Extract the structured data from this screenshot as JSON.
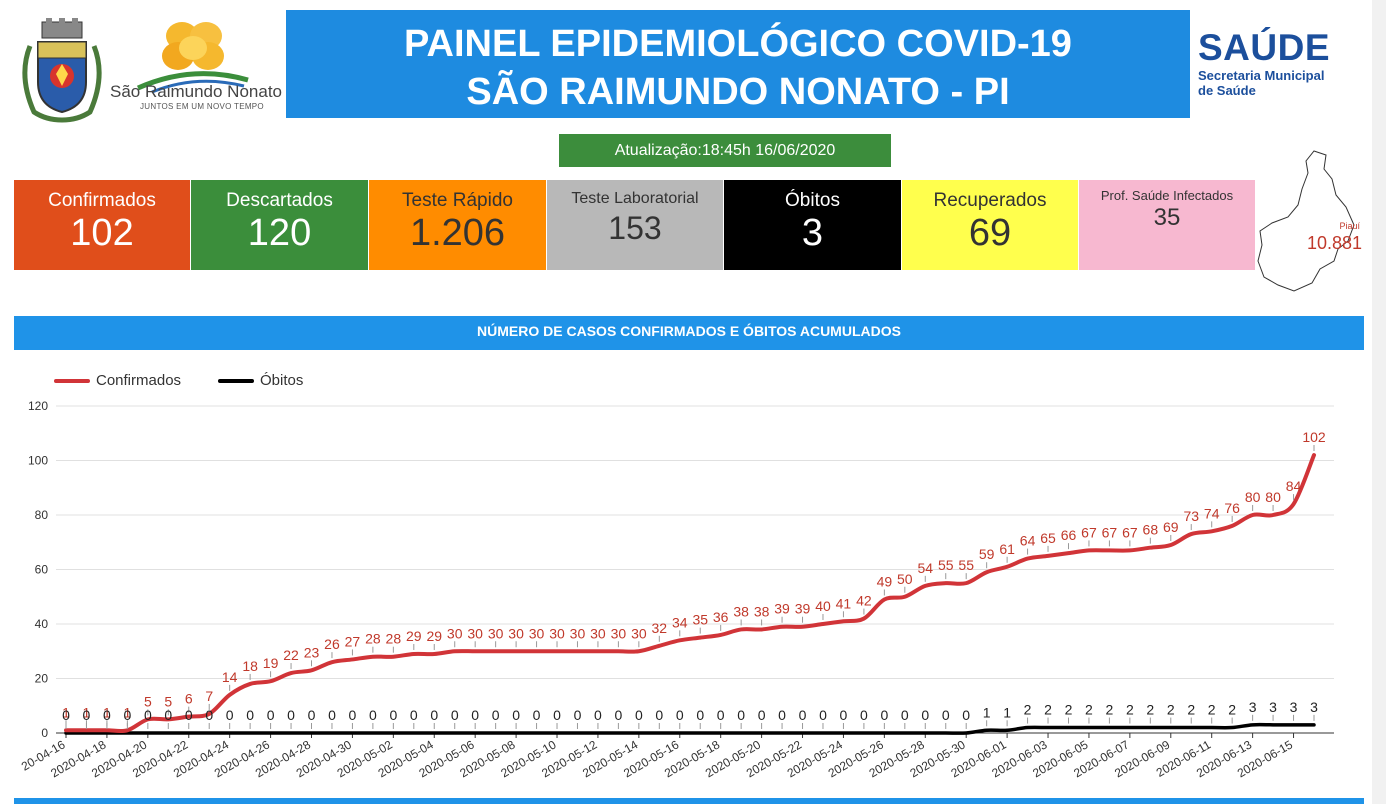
{
  "header": {
    "city_name": "São Raimundo Nonato",
    "city_slogan": "JUNTOS EM UM NOVO TEMPO",
    "title_line1": "PAINEL EPIDEMIOLÓGICO COVID-19",
    "title_line2": "SÃO RAIMUNDO NONATO - PI",
    "saude_big": "SAÚDE",
    "saude_line1": "Secretaria Municipal",
    "saude_line2": "de Saúde",
    "update": "Atualização:18:45h 16/06/2020"
  },
  "cards": [
    {
      "label": "Confirmados",
      "value": "102",
      "bg": "#e04e1b",
      "fg": "#ffffff"
    },
    {
      "label": "Descartados",
      "value": "120",
      "bg": "#3b8e3b",
      "fg": "#ffffff"
    },
    {
      "label": "Teste Rápido",
      "value": "1.206",
      "bg": "#ff8c00",
      "fg": "#333333"
    },
    {
      "label": "Teste Laboratorial",
      "value": "153",
      "bg": "#b8b8b8",
      "fg": "#333333"
    },
    {
      "label": "Óbitos",
      "value": "3",
      "bg": "#000000",
      "fg": "#ffffff"
    },
    {
      "label": "Recuperados",
      "value": "69",
      "bg": "#ffff4d",
      "fg": "#333333"
    },
    {
      "label": "Prof. Saúde Infectados",
      "value": "35",
      "bg": "#f7b8d0",
      "fg": "#333333"
    }
  ],
  "map": {
    "label": "Piauí",
    "value": "10.881"
  },
  "chart_title": "NÚMERO DE CASOS CONFIRMADOS E ÓBITOS ACUMULADOS",
  "chart_data": {
    "type": "line",
    "x": [
      "2020-04-16",
      "2020-04-17",
      "2020-04-18",
      "2020-04-19",
      "2020-04-20",
      "2020-04-21",
      "2020-04-22",
      "2020-04-23",
      "2020-04-24",
      "2020-04-25",
      "2020-04-26",
      "2020-04-27",
      "2020-04-28",
      "2020-04-29",
      "2020-04-30",
      "2020-05-01",
      "2020-05-02",
      "2020-05-03",
      "2020-05-04",
      "2020-05-05",
      "2020-05-06",
      "2020-05-07",
      "2020-05-08",
      "2020-05-09",
      "2020-05-10",
      "2020-05-11",
      "2020-05-12",
      "2020-05-13",
      "2020-05-14",
      "2020-05-15",
      "2020-05-16",
      "2020-05-17",
      "2020-05-18",
      "2020-05-19",
      "2020-05-20",
      "2020-05-21",
      "2020-05-22",
      "2020-05-23",
      "2020-05-24",
      "2020-05-25",
      "2020-05-26",
      "2020-05-27",
      "2020-05-28",
      "2020-05-29",
      "2020-05-30",
      "2020-05-31",
      "2020-06-01",
      "2020-06-02",
      "2020-06-03",
      "2020-06-04",
      "2020-06-05",
      "2020-06-06",
      "2020-06-07",
      "2020-06-08",
      "2020-06-09",
      "2020-06-10",
      "2020-06-11",
      "2020-06-12",
      "2020-06-13",
      "2020-06-14",
      "2020-06-15",
      "2020-06-16"
    ],
    "x_tick_labels": [
      "20-04-16",
      "2020-04-18",
      "2020-04-20",
      "2020-04-22",
      "2020-04-24",
      "2020-04-26",
      "2020-04-28",
      "2020-04-30",
      "2020-05-02",
      "2020-05-04",
      "2020-05-06",
      "2020-05-08",
      "2020-05-10",
      "2020-05-12",
      "2020-05-14",
      "2020-05-16",
      "2020-05-18",
      "2020-05-20",
      "2020-05-22",
      "2020-05-24",
      "2020-05-26",
      "2020-05-28",
      "2020-05-30",
      "2020-06-01",
      "2020-06-03",
      "2020-06-05",
      "2020-06-07",
      "2020-06-09",
      "2020-06-11",
      "2020-06-13",
      "2020-06-15"
    ],
    "series": [
      {
        "name": "Confirmados",
        "color": "#d13438",
        "values": [
          1,
          1,
          1,
          1,
          5,
          5,
          6,
          7,
          14,
          18,
          19,
          22,
          23,
          26,
          27,
          28,
          28,
          29,
          29,
          30,
          30,
          30,
          30,
          30,
          30,
          30,
          30,
          30,
          30,
          32,
          34,
          35,
          36,
          38,
          38,
          39,
          39,
          40,
          41,
          42,
          49,
          50,
          54,
          55,
          55,
          59,
          61,
          64,
          65,
          66,
          67,
          67,
          67,
          68,
          69,
          73,
          74,
          76,
          80,
          80,
          84,
          102
        ]
      },
      {
        "name": "Óbitos",
        "color": "#000000",
        "values": [
          0,
          0,
          0,
          0,
          0,
          0,
          0,
          0,
          0,
          0,
          0,
          0,
          0,
          0,
          0,
          0,
          0,
          0,
          0,
          0,
          0,
          0,
          0,
          0,
          0,
          0,
          0,
          0,
          0,
          0,
          0,
          0,
          0,
          0,
          0,
          0,
          0,
          0,
          0,
          0,
          0,
          0,
          0,
          0,
          0,
          1,
          1,
          2,
          2,
          2,
          2,
          2,
          2,
          2,
          2,
          2,
          2,
          2,
          3,
          3,
          3,
          3
        ]
      }
    ],
    "y_ticks": [
      0,
      20,
      40,
      60,
      80,
      100,
      120
    ],
    "ylim": [
      0,
      120
    ],
    "grid": true,
    "legend_position": "top-left"
  }
}
